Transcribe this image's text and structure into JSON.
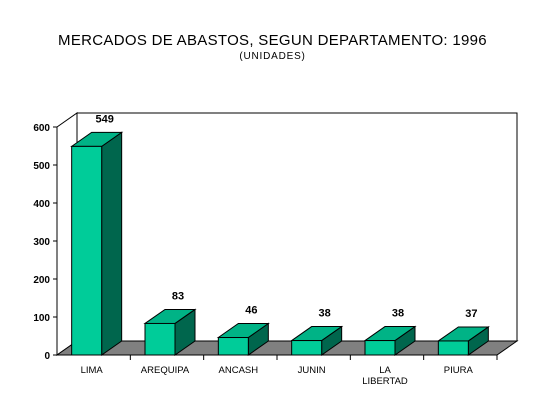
{
  "chart_data": {
    "type": "bar",
    "title": "MERCADOS DE ABASTOS, SEGUN DEPARTAMENTO: 1996",
    "subtitle": "(UNIDADES)",
    "categories": [
      [
        "LIMA"
      ],
      [
        "AREQUIPA"
      ],
      [
        "ANCASH"
      ],
      [
        "JUNIN"
      ],
      [
        "LA",
        "LIBERTAD"
      ],
      [
        "PIURA"
      ]
    ],
    "values": [
      549,
      83,
      46,
      38,
      38,
      37
    ],
    "ylim": [
      0,
      600
    ],
    "yticks": [
      "0",
      "100",
      "200",
      "300",
      "400",
      "500",
      "600"
    ],
    "style": "3d",
    "colors": {
      "front": "#00cc99",
      "side": "#00664d",
      "top": "#00b386",
      "floor": "#808080"
    }
  }
}
